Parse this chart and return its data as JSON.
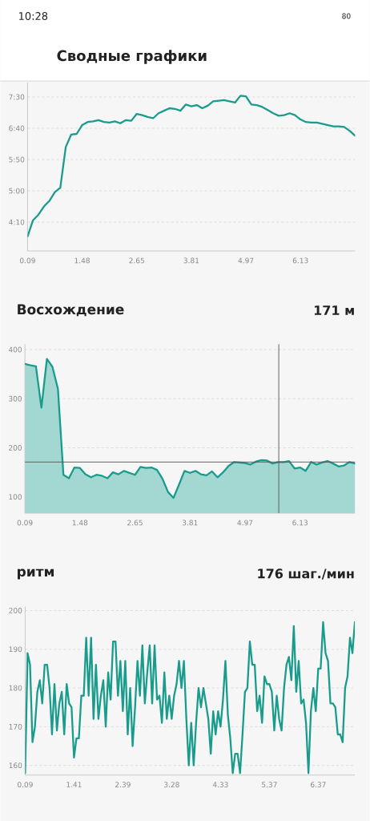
{
  "chart_data": [
    {
      "type": "line",
      "title": "Сводные графики",
      "annotations": [
        "10:28",
        "80"
      ],
      "categories": [
        "0.09",
        null,
        null,
        null,
        null,
        null,
        null,
        null,
        null,
        null,
        "1.48",
        null,
        null,
        null,
        null,
        null,
        null,
        null,
        null,
        null,
        "2.65",
        null,
        null,
        null,
        null,
        null,
        null,
        null,
        null,
        null,
        "3.81",
        null,
        null,
        null,
        null,
        null,
        null,
        null,
        null,
        null,
        "4.97",
        null,
        null,
        null,
        null,
        null,
        null,
        null,
        null,
        null,
        "6.13",
        null,
        null,
        null,
        null,
        null,
        null,
        null,
        null,
        null,
        null
      ],
      "series": [
        {
          "color": "#1a9c8c",
          "values": [
            227,
            253,
            262,
            275,
            284,
            298,
            305,
            370,
            390,
            391,
            405,
            410,
            411,
            413,
            410,
            409,
            411,
            408,
            413,
            412,
            423,
            421,
            418,
            416,
            424,
            428,
            432,
            431,
            428,
            438,
            435,
            437,
            432,
            436,
            443,
            444,
            445,
            443,
            441,
            452,
            451,
            438,
            437,
            434,
            429,
            424,
            420,
            421,
            424,
            421,
            414,
            410,
            409,
            409,
            407,
            405,
            403,
            403,
            402,
            396,
            388
          ]
        }
      ],
      "ylim": [
        204,
        473
      ],
      "yticks": [
        {
          "value": 250,
          "label": "4:10"
        },
        {
          "value": 300,
          "label": "5:00"
        },
        {
          "value": 350,
          "label": "5:50"
        },
        {
          "value": 400,
          "label": "6:40"
        },
        {
          "value": 450,
          "label": "7:30"
        }
      ],
      "grid": "y"
    },
    {
      "type": "area",
      "title": "Восхождение",
      "subtitle": "171 м",
      "categories": [
        "0.09",
        null,
        null,
        null,
        null,
        null,
        null,
        null,
        null,
        null,
        "1.48",
        null,
        null,
        null,
        null,
        null,
        null,
        null,
        null,
        null,
        "2.65",
        null,
        null,
        null,
        null,
        null,
        null,
        null,
        null,
        null,
        "3.81",
        null,
        null,
        null,
        null,
        null,
        null,
        null,
        null,
        null,
        "4.97",
        null,
        null,
        null,
        null,
        null,
        null,
        null,
        null,
        null,
        "6.13",
        null,
        null,
        null,
        null,
        null,
        null,
        null,
        null,
        null,
        null
      ],
      "series": [
        {
          "color": "#1a9c8c",
          "values": [
            371,
            368,
            366,
            282,
            381,
            365,
            320,
            145,
            138,
            160,
            159,
            146,
            140,
            145,
            143,
            138,
            150,
            146,
            153,
            149,
            145,
            161,
            159,
            160,
            155,
            137,
            110,
            98,
            125,
            153,
            149,
            153,
            146,
            144,
            152,
            140,
            150,
            163,
            171,
            170,
            169,
            166,
            172,
            175,
            174,
            168,
            171,
            171,
            173,
            158,
            160,
            153,
            171,
            166,
            170,
            173,
            168,
            162,
            164,
            171,
            168
          ]
        }
      ],
      "ylim": [
        67,
        411
      ],
      "yticks": [
        100,
        200,
        300,
        400
      ],
      "grid": "y",
      "ref_lines": [
        {
          "axis": "y",
          "value": 171,
          "color": "#555555"
        }
      ]
    },
    {
      "type": "line",
      "title": "ритм",
      "subtitle": "176 шаг./мин",
      "categories": [
        "0.09",
        null,
        null,
        null,
        null,
        null,
        null,
        null,
        null,
        null,
        null,
        null,
        null,
        null,
        null,
        null,
        null,
        null,
        null,
        null,
        "1.41",
        null,
        null,
        null,
        null,
        null,
        null,
        null,
        null,
        null,
        null,
        null,
        null,
        null,
        null,
        null,
        null,
        null,
        null,
        null,
        "2.39",
        null,
        null,
        null,
        null,
        null,
        null,
        null,
        null,
        null,
        null,
        null,
        null,
        null,
        null,
        null,
        null,
        null,
        null,
        null,
        "3.28",
        null,
        null,
        null,
        null,
        null,
        null,
        null,
        null,
        null,
        null,
        null,
        null,
        null,
        null,
        null,
        null,
        null,
        null,
        null,
        "4.33",
        null,
        null,
        null,
        null,
        null,
        null,
        null,
        null,
        null,
        null,
        null,
        null,
        null,
        null,
        null,
        null,
        null,
        null,
        null,
        "5.37",
        null,
        null,
        null,
        null,
        null,
        null,
        null,
        null,
        null,
        null,
        null,
        null,
        null,
        null,
        null,
        null,
        null,
        null,
        null,
        "6.37",
        null,
        null,
        null,
        null,
        null,
        null,
        null,
        null,
        null,
        null,
        null,
        null,
        null,
        null,
        null
      ],
      "series": [
        {
          "color": "#1a9c8c",
          "values": [
            158,
            189,
            186,
            166,
            170,
            179,
            182,
            176,
            186,
            186,
            180,
            168,
            181,
            169,
            176,
            179,
            168,
            181,
            176,
            175,
            162,
            167,
            167,
            178,
            178,
            193,
            178,
            193,
            172,
            186,
            172,
            178,
            182,
            170,
            184,
            177,
            192,
            192,
            178,
            187,
            174,
            187,
            168,
            180,
            165,
            175,
            187,
            178,
            191,
            176,
            184,
            191,
            176,
            191,
            177,
            178,
            171,
            184,
            172,
            178,
            172,
            178,
            181,
            187,
            180,
            187,
            172,
            160,
            171,
            160,
            171,
            180,
            175,
            180,
            176,
            172,
            163,
            174,
            168,
            174,
            170,
            177,
            187,
            173,
            167,
            158,
            163,
            163,
            158,
            168,
            179,
            180,
            192,
            186,
            186,
            174,
            178,
            171,
            183,
            181,
            181,
            179,
            169,
            178,
            172,
            169,
            180,
            186,
            188,
            182,
            196,
            179,
            187,
            176,
            177,
            171,
            158,
            174,
            180,
            174,
            185,
            185,
            197,
            189,
            187,
            176,
            176,
            175,
            168,
            168,
            166,
            180,
            183,
            193,
            189,
            197
          ]
        }
      ],
      "ylim": [
        157.5,
        201
      ],
      "yticks": [
        160,
        170,
        180,
        190,
        200
      ],
      "grid": "y"
    }
  ]
}
